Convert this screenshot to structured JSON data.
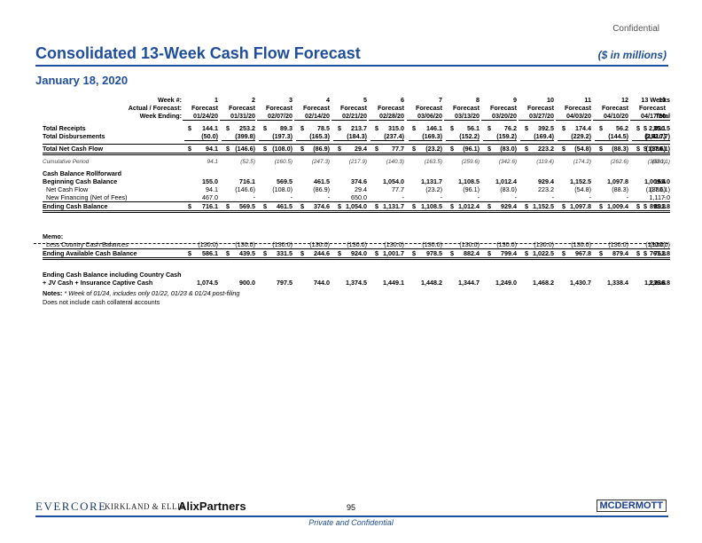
{
  "header": {
    "confidential": "Confidential",
    "title": "Consolidated 13-Week Cash Flow Forecast",
    "units": "($ in millions)",
    "date": "January 18, 2020"
  },
  "table": {
    "row_week": {
      "label": "Week #:",
      "values": [
        "1",
        "2",
        "3",
        "4",
        "5",
        "6",
        "7",
        "8",
        "9",
        "10",
        "11",
        "12",
        "13",
        "13 Weeks"
      ]
    },
    "row_type": {
      "label": "Actual / Forecast:",
      "values": [
        "Forecast",
        "Forecast",
        "Forecast",
        "Forecast",
        "Forecast",
        "Forecast",
        "Forecast",
        "Forecast",
        "Forecast",
        "Forecast",
        "Forecast",
        "Forecast",
        "Forecast",
        ""
      ]
    },
    "row_ending": {
      "label": "Week Ending:",
      "values": [
        "01/24/20",
        "01/31/20",
        "02/07/20",
        "02/14/20",
        "02/21/20",
        "02/28/20",
        "03/06/20",
        "03/13/20",
        "03/20/20",
        "03/27/20",
        "04/03/20",
        "04/10/20",
        "04/17/20",
        "Total"
      ]
    },
    "total_receipts": {
      "label": "Total Receipts",
      "values": [
        "144.1",
        "253.2",
        "89.3",
        "78.5",
        "213.7",
        "315.0",
        "146.1",
        "56.1",
        "76.2",
        "392.5",
        "174.4",
        "56.2",
        "35.1",
        "2,030.5"
      ]
    },
    "total_disbursements": {
      "label": "Total Disbursements",
      "values": [
        "(50.0)",
        "(399.8)",
        "(197.3)",
        "(165.3)",
        "(184.3)",
        "(237.4)",
        "(169.3)",
        "(152.2)",
        "(159.2)",
        "(169.4)",
        "(229.2)",
        "(144.5)",
        "(152.7)",
        "(2,410.7)"
      ]
    },
    "total_net": {
      "label": "Total Net Cash Flow",
      "values": [
        "94.1",
        "(146.6)",
        "(108.0)",
        "(86.9)",
        "29.4",
        "77.7",
        "(23.2)",
        "(96.1)",
        "(83.0)",
        "223.2",
        "(54.8)",
        "(88.3)",
        "(117.6)",
        "(380.1)"
      ]
    },
    "cumulative": {
      "label": "Cumulative Period",
      "values": [
        "94.1",
        "(52.5)",
        "(160.5)",
        "(247.3)",
        "(217.9)",
        "(140.3)",
        "(163.5)",
        "(259.6)",
        "(342.6)",
        "(119.4)",
        "(174.2)",
        "(262.6)",
        "(380.1)",
        "(380.1)"
      ]
    },
    "rollforward_title": "Cash Balance Rollforward",
    "beginning": {
      "label": "Beginning Cash Balance",
      "values": [
        "155.0",
        "716.1",
        "569.5",
        "461.5",
        "374.6",
        "1,054.0",
        "1,131.7",
        "1,108.5",
        "1,012.4",
        "929.4",
        "1,152.5",
        "1,097.8",
        "1,009.4",
        "155.0"
      ]
    },
    "net_flow": {
      "label": "Net Cash Flow",
      "values": [
        "94.1",
        "(146.6)",
        "(108.0)",
        "(86.9)",
        "29.4",
        "77.7",
        "(23.2)",
        "(96.1)",
        "(83.0)",
        "223.2",
        "(54.8)",
        "(88.3)",
        "(117.6)",
        "(380.1)"
      ]
    },
    "new_financing": {
      "label": "New Financing (Net of Fees)",
      "values": [
        "467.0",
        "-",
        "-",
        "-",
        "650.0",
        "-",
        "-",
        "-",
        "-",
        "-",
        "-",
        "-",
        "-",
        "1,117.0"
      ]
    },
    "ending": {
      "label": "Ending Cash Balance",
      "values": [
        "716.1",
        "569.5",
        "461.5",
        "374.6",
        "1,054.0",
        "1,131.7",
        "1,108.5",
        "1,012.4",
        "929.4",
        "1,152.5",
        "1,097.8",
        "1,009.4",
        "891.8",
        "891.8"
      ]
    },
    "memo_title": "Memo:",
    "less_country": {
      "label": "Less Country Cash Balances",
      "values": [
        "(130.0)",
        "(130.0)",
        "(130.0)",
        "(130.0)",
        "(130.0)",
        "(130.0)",
        "(130.0)",
        "(130.0)",
        "(130.0)",
        "(130.0)",
        "(130.0)",
        "(130.0)",
        "(130.0)",
        "(130.0)"
      ]
    },
    "ending_available": {
      "label": "Ending Available Cash Balance",
      "values": [
        "586.1",
        "439.5",
        "331.5",
        "244.6",
        "924.0",
        "1,001.7",
        "978.5",
        "882.4",
        "799.4",
        "1,022.5",
        "967.8",
        "879.4",
        "761.8",
        "761.8"
      ]
    },
    "incl_country_line1": "Ending Cash Balance including Country Cash",
    "incl_country": {
      "label": "+ JV Cash + Insurance Captive Cash",
      "values": [
        "1,074.5",
        "900.0",
        "797.5",
        "744.0",
        "1,374.5",
        "1,449.1",
        "1,448.2",
        "1,344.7",
        "1,249.0",
        "1,468.2",
        "1,430.7",
        "1,338.4",
        "1,236.8",
        "1,236.8"
      ]
    },
    "dollar": "$"
  },
  "notes": {
    "label": "Notes:",
    "line1": "* Week of 01/24, includes only 01/22, 01/23 & 01/24 post-filing",
    "line2": "Does not include cash collateral accounts"
  },
  "footer": {
    "evercore": "EVERCORE",
    "kirkland": "KIRKLAND & ELLIS",
    "alix": "AlixPartners",
    "page": "95",
    "mcdermott": "MCDERMOTT",
    "confidential": "Private and Confidential"
  }
}
